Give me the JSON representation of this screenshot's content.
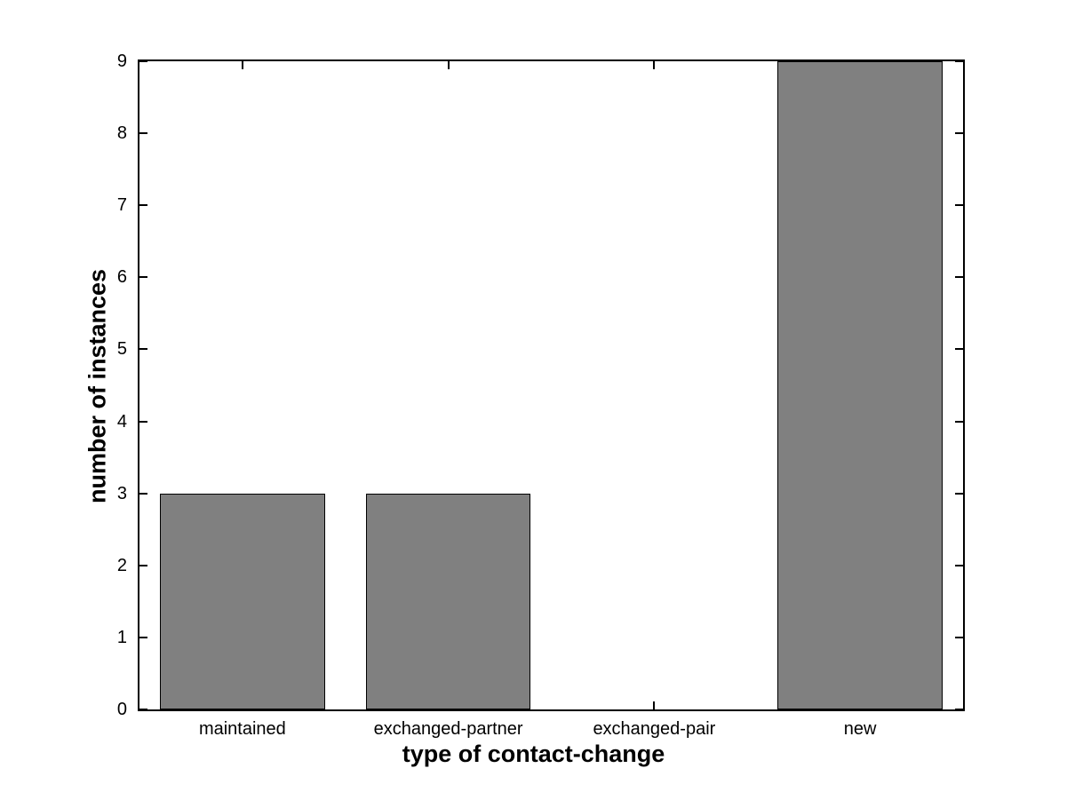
{
  "figure": {
    "background_color": "#ffffff"
  },
  "chart_data": {
    "type": "bar",
    "title": "",
    "categories": [
      "maintained",
      "exchanged-partner",
      "exchanged-pair",
      "new"
    ],
    "values": [
      3,
      3,
      0,
      9
    ],
    "xlabel": "type of contact-change",
    "ylabel": "number of instances",
    "ylim": [
      0,
      9
    ],
    "yticks": [
      0,
      1,
      2,
      3,
      4,
      5,
      6,
      7,
      8,
      9
    ],
    "bar_width_fraction": 0.8,
    "bar_color": "#808080",
    "bar_edge_color": "#000000",
    "axis_color": "#000000",
    "grid": false,
    "legend": null
  }
}
